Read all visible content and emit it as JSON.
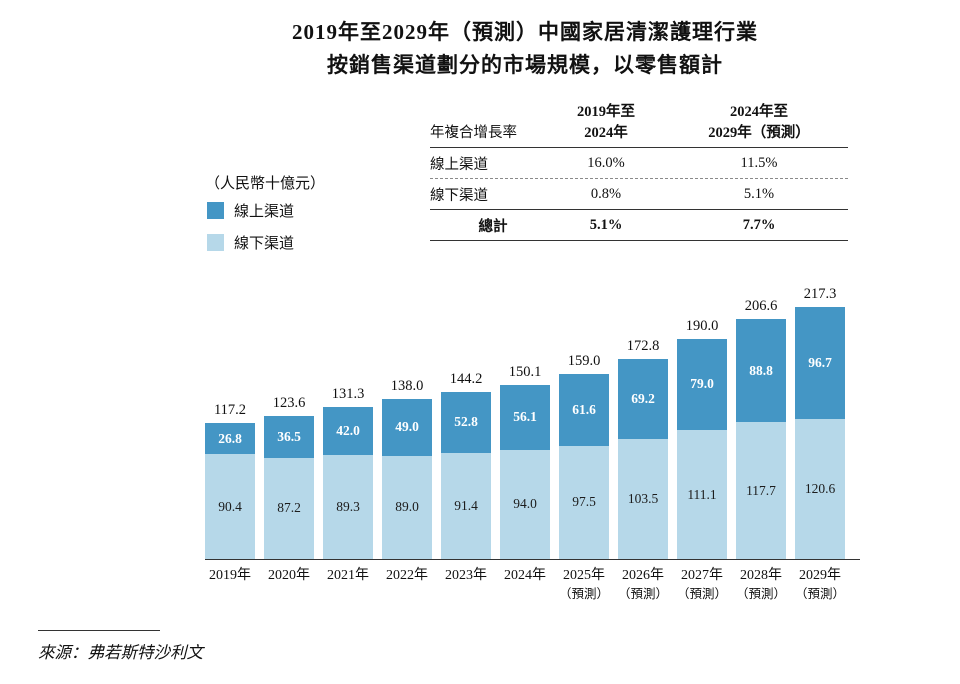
{
  "title": {
    "line1": "2019年至2029年（預測）中國家居清潔護理行業",
    "line2": "按銷售渠道劃分的市場規模，以零售額計"
  },
  "unit_label": "（人民幣十億元）",
  "legend": {
    "online": {
      "label": "線上渠道",
      "color": "#4496c5"
    },
    "offline": {
      "label": "線下渠道",
      "color": "#b6d8e9"
    }
  },
  "cagr_table": {
    "header": {
      "col1": "年複合增長率",
      "col2_line1": "2019年至",
      "col2_line2": "2024年",
      "col3_line1": "2024年至",
      "col3_line2": "2029年（預測）"
    },
    "rows": [
      {
        "label": "線上渠道",
        "v1": "16.0%",
        "v2": "11.5%"
      },
      {
        "label": "線下渠道",
        "v1": "0.8%",
        "v2": "5.1%"
      },
      {
        "label": "總計",
        "v1": "5.1%",
        "v2": "7.7%"
      }
    ]
  },
  "chart_data": {
    "type": "bar",
    "stacked": true,
    "title": "2019年至2029年（預測）中國家居清潔護理行業按銷售渠道劃分的市場規模，以零售額計",
    "ylabel": "（人民幣十億元）",
    "ylim": [
      0,
      220
    ],
    "categories": [
      {
        "year": "2019年",
        "note": ""
      },
      {
        "year": "2020年",
        "note": ""
      },
      {
        "year": "2021年",
        "note": ""
      },
      {
        "year": "2022年",
        "note": ""
      },
      {
        "year": "2023年",
        "note": ""
      },
      {
        "year": "2024年",
        "note": ""
      },
      {
        "year": "2025年",
        "note": "（預測）"
      },
      {
        "year": "2026年",
        "note": "（預測）"
      },
      {
        "year": "2027年",
        "note": "（預測）"
      },
      {
        "year": "2028年",
        "note": "（預測）"
      },
      {
        "year": "2029年",
        "note": "（預測）"
      }
    ],
    "series": [
      {
        "name": "線下渠道",
        "color": "#b6d8e9",
        "values": [
          90.4,
          87.2,
          89.3,
          89.0,
          91.4,
          94.0,
          97.5,
          103.5,
          111.1,
          117.7,
          120.6
        ]
      },
      {
        "name": "線上渠道",
        "color": "#4496c5",
        "values": [
          26.8,
          36.5,
          42.0,
          49.0,
          52.8,
          56.1,
          61.6,
          69.2,
          79.0,
          88.8,
          96.7
        ]
      }
    ],
    "totals": [
      117.2,
      123.6,
      131.3,
      138.0,
      144.2,
      150.1,
      159.0,
      172.8,
      190.0,
      206.6,
      217.3
    ]
  },
  "source": "來源：弗若斯特沙利文"
}
